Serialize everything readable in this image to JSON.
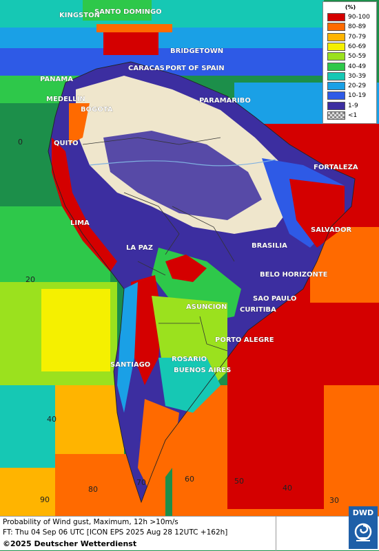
{
  "legend": {
    "unit": "(%)",
    "classes": [
      {
        "label": "90-100",
        "color": "#d40000"
      },
      {
        "label": "80-89",
        "color": "#ff6a00"
      },
      {
        "label": "70-79",
        "color": "#ffb400"
      },
      {
        "label": "60-69",
        "color": "#f5f000"
      },
      {
        "label": "50-59",
        "color": "#9be11e"
      },
      {
        "label": "40-49",
        "color": "#2ec84a"
      },
      {
        "label": "30-39",
        "color": "#16c8b4"
      },
      {
        "label": "20-29",
        "color": "#1aa0e6"
      },
      {
        "label": "10-19",
        "color": "#2e5ae6"
      },
      {
        "label": "1-9",
        "color": "#3c2ea0"
      },
      {
        "label": "<1",
        "color": "checker"
      }
    ]
  },
  "cities": [
    {
      "name": "KINGSTON"
    },
    {
      "name": "SANTO DOMINGO"
    },
    {
      "name": "BRIDGETOWN"
    },
    {
      "name": "PANAMA"
    },
    {
      "name": "CARACAS"
    },
    {
      "name": "PORT OF SPAIN"
    },
    {
      "name": "MEDELLIN"
    },
    {
      "name": "BOGOTA"
    },
    {
      "name": "PARAMARIBO"
    },
    {
      "name": "QUITO"
    },
    {
      "name": "FORTALEZA"
    },
    {
      "name": "LIMA"
    },
    {
      "name": "SALVADOR"
    },
    {
      "name": "BRASILIA"
    },
    {
      "name": "LA PAZ"
    },
    {
      "name": "BELO HORIZONTE"
    },
    {
      "name": "SAO PAULO"
    },
    {
      "name": "ASUNCION"
    },
    {
      "name": "CURITIBA"
    },
    {
      "name": "PORTO ALEGRE"
    },
    {
      "name": "ROSARIO"
    },
    {
      "name": "SANTIAGO"
    },
    {
      "name": "BUENOS AIRES"
    }
  ],
  "grid_labels": [
    "0",
    "20",
    "40",
    "90",
    "80",
    "70",
    "60",
    "50",
    "40",
    "30"
  ],
  "footer": {
    "line1": "Probability of Wind gust, Maximum, 12h >10m/s",
    "line2": "FT: Thu 04 Sep 06 UTC [ICON EPS 2025 Aug 28 12UTC +162h]",
    "line3": "©2025 Deutscher Wetterdienst"
  },
  "logo": {
    "text": "DWD"
  }
}
